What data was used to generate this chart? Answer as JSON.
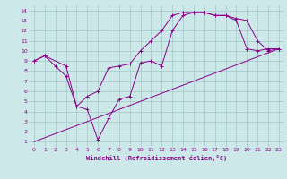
{
  "xlabel": "Windchill (Refroidissement éolien,°C)",
  "background_color": "#cce8e8",
  "grid_color": "#aacccc",
  "line_color": "#880088",
  "xlim": [
    -0.5,
    23.5
  ],
  "ylim": [
    0.5,
    14.5
  ],
  "xticks": [
    0,
    1,
    2,
    3,
    4,
    5,
    6,
    7,
    8,
    9,
    10,
    11,
    12,
    13,
    14,
    15,
    16,
    17,
    18,
    19,
    20,
    21,
    22,
    23
  ],
  "yticks": [
    1,
    2,
    3,
    4,
    5,
    6,
    7,
    8,
    9,
    10,
    11,
    12,
    13,
    14
  ],
  "line1_x": [
    0,
    1,
    2,
    3,
    4,
    5,
    6,
    7,
    8,
    9,
    10,
    11,
    12,
    13,
    14,
    15,
    16,
    17,
    18,
    19,
    20,
    21,
    22,
    23
  ],
  "line1_y": [
    9.0,
    9.5,
    8.5,
    7.5,
    4.5,
    4.2,
    1.2,
    3.3,
    5.2,
    5.5,
    8.8,
    9.0,
    8.5,
    12.0,
    13.5,
    13.8,
    13.8,
    13.5,
    13.5,
    13.0,
    10.2,
    10.0,
    10.2,
    10.2
  ],
  "line2_x": [
    0,
    1,
    3,
    4,
    5,
    6,
    7,
    8,
    9,
    10,
    11,
    12,
    13,
    14,
    15,
    16,
    17,
    18,
    19,
    20,
    21,
    22,
    23
  ],
  "line2_y": [
    9.0,
    9.5,
    8.5,
    4.5,
    5.5,
    6.0,
    8.3,
    8.5,
    8.7,
    10.0,
    11.0,
    12.0,
    13.5,
    13.8,
    13.8,
    13.8,
    13.5,
    13.5,
    13.2,
    13.0,
    11.0,
    10.0,
    10.2
  ],
  "line3_x": [
    0,
    23
  ],
  "line3_y": [
    1.0,
    10.2
  ],
  "markersize": 2.5,
  "tick_fontsize": 4.5,
  "xlabel_fontsize": 5.0
}
